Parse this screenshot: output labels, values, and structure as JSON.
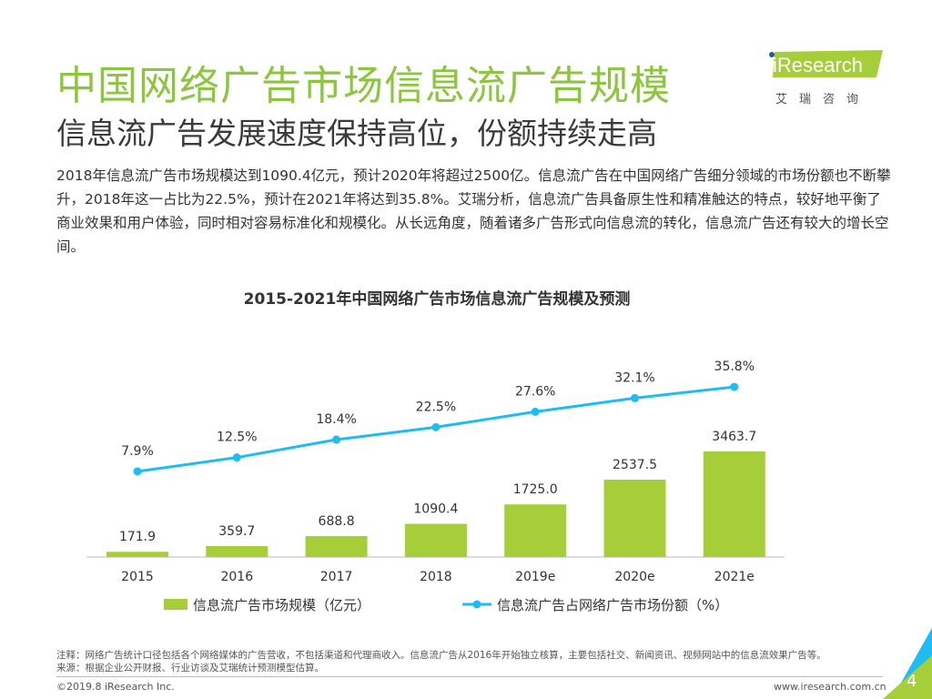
{
  "header": {
    "title": "中国网络广告市场信息流广告规模",
    "subtitle": "信息流广告发展速度保持高位，份额持续走高",
    "description": "2018年信息流广告市场规模达到1090.4亿元，预计2020年将超过2500亿。信息流广告在中国网络广告细分领域的市场份额也不断攀升，2018年这一占比为22.5%，预计在2021年将达到35.8%。艾瑞分析，信息流广告具备原生性和精准触达的特点，较好地平衡了商业效果和用户体验，同时相对容易标准化和规模化。从长远角度，随着诸多广告形式向信息流的转化，信息流广告还有较大的增长空间。"
  },
  "logo": {
    "text": "iResearch",
    "cn": "艾瑞咨询"
  },
  "chart_data": {
    "type": "bar+line",
    "title": "2015-2021年中国网络广告市场信息流广告规模及预测",
    "categories": [
      "2015",
      "2016",
      "2017",
      "2018",
      "2019e",
      "2020e",
      "2021e"
    ],
    "series": [
      {
        "name": "信息流广告市场规模（亿元）",
        "type": "bar",
        "color": "#a6ce39",
        "values": [
          171.9,
          359.7,
          688.8,
          1090.4,
          1725.0,
          2537.5,
          3463.7
        ],
        "labels": [
          "171.9",
          "359.7",
          "688.8",
          "1090.4",
          "1725.0",
          "2537.5",
          "3463.7"
        ]
      },
      {
        "name": "信息流广告占网络广告市场份额（%）",
        "type": "line",
        "color": "#1ebcf0",
        "values": [
          7.9,
          12.5,
          18.4,
          22.5,
          27.6,
          32.1,
          35.8
        ],
        "labels": [
          "7.9%",
          "12.5%",
          "18.4%",
          "22.5%",
          "27.6%",
          "32.1%",
          "35.8%"
        ]
      }
    ],
    "legend": "bottom",
    "grid": false
  },
  "footer": {
    "note": "注释：网络广告统计口径包括各个网络媒体的广告营收，不包括渠道和代理商收入。信息流广告从2016年开始独立核算，主要包括社交、新闻资讯、视频网站中的信息流效果广告等。",
    "source": "来源：根据企业公开财报、行业访谈及艾瑞统计预测模型估算。",
    "copyright": "©2019.8 iResearch Inc.",
    "url": "www.iresearch.com.cn",
    "page": "4"
  }
}
